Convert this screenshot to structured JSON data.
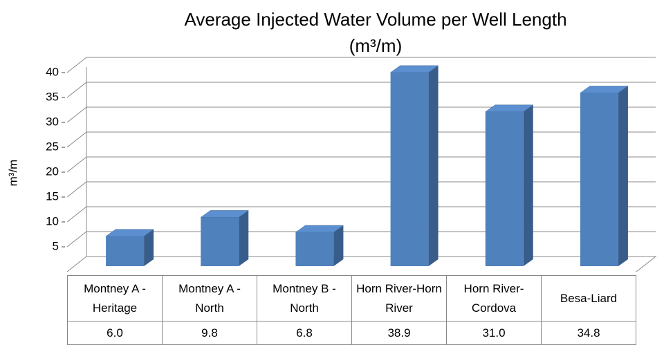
{
  "chart_data": {
    "type": "bar3d",
    "title": [
      "Average Injected Water Volume per Well Length",
      "(m³/m)"
    ],
    "y_label": "m³/m",
    "categories": [
      "Montney A - Heritage",
      "Montney A - North",
      "Montney B - North",
      "Horn River-Horn River",
      "Horn River-Cordova",
      "Besa-Liard"
    ],
    "values": [
      6,
      9.8,
      6.8,
      38.9,
      31,
      34.8
    ],
    "value_labels": [
      "6.0",
      "9.8",
      "6.8",
      "38.9",
      "31.0",
      "34.8"
    ],
    "color": "#4f81bd",
    "ylim": [
      0,
      40
    ],
    "yticks": [
      5,
      10,
      15,
      20,
      25,
      30,
      35,
      40
    ],
    "grid": true
  }
}
